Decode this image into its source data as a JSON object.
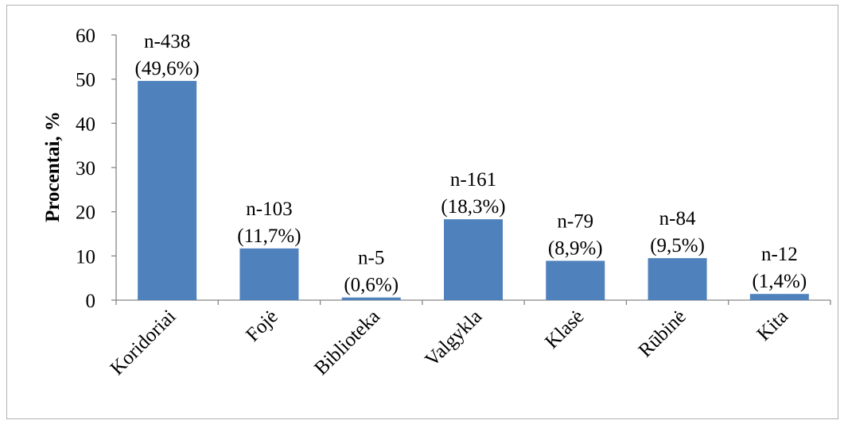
{
  "chart_data": {
    "type": "bar",
    "categories": [
      "Koridoriai",
      "Fojė",
      "Biblioteka",
      "Valgykla",
      "Klasė",
      "Rūbinė",
      "Kita"
    ],
    "values": [
      49.6,
      11.7,
      0.6,
      18.3,
      8.9,
      9.5,
      1.4
    ],
    "data_labels": [
      [
        "n-438",
        "(49,6%)"
      ],
      [
        "n-103",
        "(11,7%)"
      ],
      [
        "n-5",
        "(0,6%)"
      ],
      [
        "n-161",
        "(18,3%)"
      ],
      [
        "n-79",
        "(8,9%)"
      ],
      [
        "n-84",
        "(9,5%)"
      ],
      [
        "n-12",
        "(1,4%)"
      ]
    ],
    "ylabel": "Procentai, %",
    "ylim": [
      0,
      60
    ],
    "yticks": [
      0,
      10,
      20,
      30,
      40,
      50,
      60
    ],
    "bar_color": "#4f81bd",
    "grid": false,
    "legend": "none"
  }
}
